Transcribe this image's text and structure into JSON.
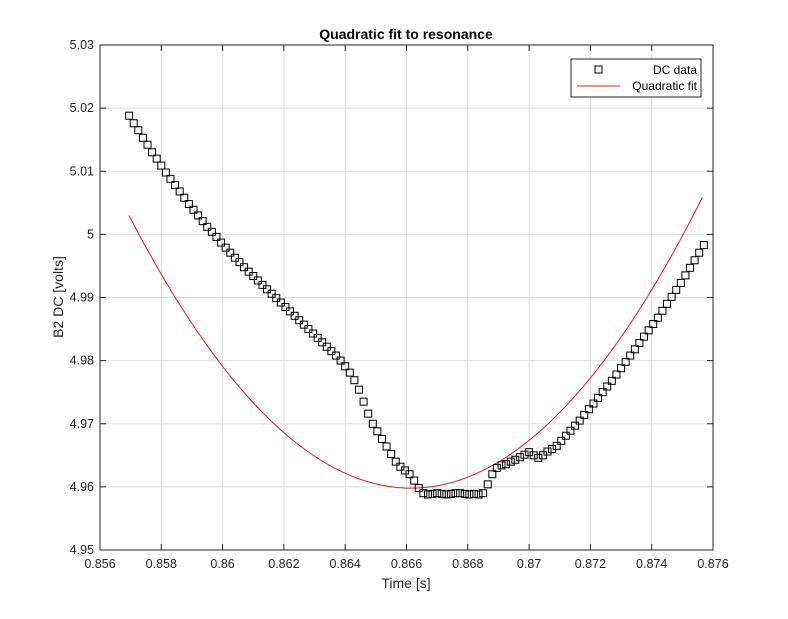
{
  "chart_data": {
    "type": "scatter",
    "title": "Quadratic fit to resonance",
    "xlabel": "Time [s]",
    "ylabel": "B2 DC [volts]",
    "xlim": [
      0.856,
      0.876
    ],
    "ylim": [
      4.95,
      5.03
    ],
    "xticks": [
      0.856,
      0.858,
      0.86,
      0.862,
      0.864,
      0.866,
      0.868,
      0.87,
      0.872,
      0.874,
      0.876
    ],
    "xtick_labels": [
      "0.856",
      "0.858",
      "0.86",
      "0.862",
      "0.864",
      "0.866",
      "0.868",
      "0.87",
      "0.872",
      "0.874",
      "0.876"
    ],
    "yticks": [
      4.95,
      4.96,
      4.97,
      4.98,
      4.99,
      5.0,
      5.01,
      5.02,
      5.03
    ],
    "ytick_labels": [
      "4.95",
      "4.96",
      "4.97",
      "4.98",
      "4.99",
      "5",
      "5.01",
      "5.02",
      "5.03"
    ],
    "grid": true,
    "legend_position": "top-right",
    "series": [
      {
        "name": "DC data",
        "kind": "markers",
        "marker": "square",
        "color": "#000000",
        "x": [
          0.85695,
          0.8571,
          0.85725,
          0.8574,
          0.85755,
          0.8577,
          0.85785,
          0.858,
          0.85815,
          0.8583,
          0.85845,
          0.8586,
          0.85875,
          0.8589,
          0.85905,
          0.8592,
          0.85935,
          0.8595,
          0.85965,
          0.8598,
          0.85995,
          0.8601,
          0.86025,
          0.8604,
          0.86055,
          0.8607,
          0.86085,
          0.861,
          0.86115,
          0.8613,
          0.86145,
          0.8616,
          0.86175,
          0.8619,
          0.86205,
          0.8622,
          0.86235,
          0.8625,
          0.86265,
          0.8628,
          0.86295,
          0.8631,
          0.86325,
          0.8634,
          0.86355,
          0.8637,
          0.86385,
          0.864,
          0.86415,
          0.8643,
          0.86445,
          0.8646,
          0.86475,
          0.8649,
          0.86505,
          0.8652,
          0.86535,
          0.8655,
          0.86565,
          0.8658,
          0.86595,
          0.8661,
          0.86625,
          0.8664,
          0.86655,
          0.8667,
          0.86685,
          0.867,
          0.86715,
          0.8673,
          0.86745,
          0.8676,
          0.86775,
          0.8679,
          0.86805,
          0.8682,
          0.86835,
          0.8685,
          0.86865,
          0.8688,
          0.86895,
          0.8691,
          0.86925,
          0.8694,
          0.86955,
          0.8697,
          0.86985,
          0.87,
          0.87015,
          0.8703,
          0.87045,
          0.8706,
          0.87075,
          0.8709,
          0.87105,
          0.8712,
          0.87135,
          0.8715,
          0.87165,
          0.8718,
          0.87195,
          0.8721,
          0.87225,
          0.8724,
          0.87255,
          0.8727,
          0.87285,
          0.873,
          0.87315,
          0.8733,
          0.87345,
          0.8736,
          0.87375,
          0.8739,
          0.87405,
          0.8742,
          0.87435,
          0.8745,
          0.87465,
          0.8748,
          0.87495,
          0.8751,
          0.87525,
          0.8754,
          0.87555,
          0.8757
        ],
        "y": [
          5.0188,
          5.0176,
          5.0165,
          5.0153,
          5.0142,
          5.013,
          5.012,
          5.0109,
          5.0098,
          5.0088,
          5.0078,
          5.0068,
          5.0058,
          5.0048,
          5.0039,
          5.003,
          5.0021,
          5.0012,
          5.0004,
          4.9996,
          4.9987,
          4.9979,
          4.9971,
          4.9963,
          4.9956,
          4.9948,
          4.9941,
          4.9934,
          4.9927,
          4.992,
          4.9913,
          4.9906,
          4.9899,
          4.9892,
          4.9885,
          4.9878,
          4.9871,
          4.9864,
          4.9857,
          4.985,
          4.9843,
          4.9836,
          4.9829,
          4.9822,
          4.9815,
          4.9808,
          4.98,
          4.9791,
          4.9781,
          4.9769,
          4.9754,
          4.9735,
          4.9716,
          4.97,
          4.9688,
          4.9676,
          4.9664,
          4.9652,
          4.964,
          4.9632,
          4.9626,
          4.962,
          4.961,
          4.9598,
          4.959,
          4.9588,
          4.9589,
          4.959,
          4.9589,
          4.9588,
          4.9589,
          4.959,
          4.959,
          4.9589,
          4.9588,
          4.9589,
          4.9588,
          4.959,
          4.9604,
          4.962,
          4.963,
          4.9634,
          4.9636,
          4.964,
          4.9643,
          4.9647,
          4.9651,
          4.9655,
          4.965,
          4.9646,
          4.965,
          4.9656,
          4.966,
          4.9665,
          4.9673,
          4.9681,
          4.9689,
          4.9697,
          4.9705,
          4.9714,
          4.9723,
          4.9732,
          4.9741,
          4.975,
          4.9759,
          4.9768,
          4.9778,
          4.9788,
          4.9798,
          4.9808,
          4.9818,
          4.9828,
          4.9838,
          4.9848,
          4.9858,
          4.9868,
          4.9879,
          4.989,
          4.9901,
          4.9912,
          4.9923,
          4.9935,
          4.9947,
          4.9959,
          4.9971,
          4.9983
        ]
      },
      {
        "name": "Quadratic fit",
        "kind": "line",
        "color": "#e02020",
        "model": {
          "a": 510.0,
          "x0": 0.86615,
          "c": 4.9598
        },
        "x_range": [
          0.85695,
          0.87565
        ]
      }
    ]
  }
}
